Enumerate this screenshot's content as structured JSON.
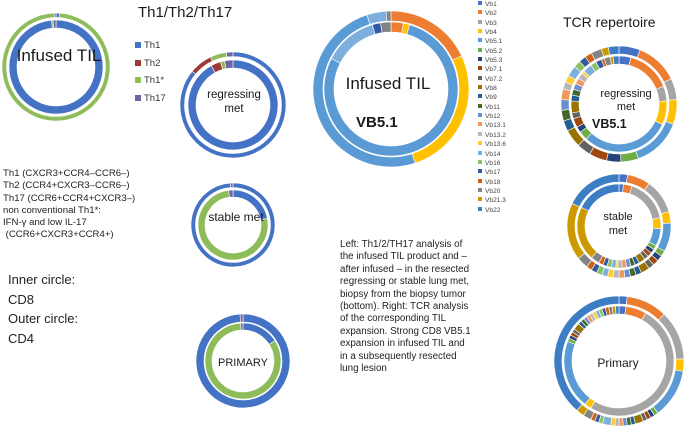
{
  "headings": {
    "th_title": "Th1/Th2/Th17",
    "tcr_title": "TCR repertoire"
  },
  "chart_data": [
    {
      "type": "donut",
      "label": "Infused TIL",
      "categories": [
        "Th1",
        "Th2",
        "Th1*",
        "Th17"
      ],
      "inner": [
        0.985,
        0.0,
        0.005,
        0.01
      ],
      "outer": [
        0.01,
        0.0,
        0.985,
        0.005
      ]
    },
    {
      "type": "donut",
      "label": "regressing met",
      "categories": [
        "Th1",
        "Th2",
        "Th1*",
        "Th17"
      ],
      "inner": [
        0.92,
        0.035,
        0.015,
        0.03
      ],
      "outer": [
        0.86,
        0.07,
        0.05,
        0.02
      ]
    },
    {
      "type": "donut",
      "label": "stable met",
      "categories": [
        "Th1",
        "Th2",
        "Th1*",
        "Th17"
      ],
      "inner": [
        0.22,
        0.0,
        0.76,
        0.02
      ],
      "outer": [
        0.99,
        0.0,
        0.0,
        0.01
      ]
    },
    {
      "type": "donut",
      "label": "PRIMARY",
      "categories": [
        "Th1",
        "Th2",
        "Th1*",
        "Th17"
      ],
      "inner": [
        0.16,
        0.0,
        0.83,
        0.01
      ],
      "outer": [
        0.99,
        0.0,
        0.0,
        0.01
      ]
    },
    {
      "type": "donut",
      "label": "Infused TIL",
      "sublabel": "VB5.1",
      "categories": [
        "Vb1",
        "Vb2",
        "Vb3",
        "Vb4",
        "Vb5.1",
        "Vb5.2",
        "Vb5.3",
        "Vb7.1",
        "Vb7.2",
        "Vb8",
        "Vb9",
        "Vb11",
        "Vb12",
        "Vb13.1",
        "Vb13.2",
        "Vb13.6",
        "Vb14",
        "Vb16",
        "Vb17",
        "Vb18",
        "Vb20",
        "Vb21.3",
        "Vb22"
      ],
      "inner": [
        0,
        0.03,
        0,
        0.015,
        0.78,
        0,
        0,
        0,
        0,
        0,
        0,
        0,
        0,
        0,
        0,
        0,
        0.13,
        0,
        0.02,
        0,
        0.025,
        0,
        0
      ],
      "outer": [
        0,
        0.18,
        0,
        0.27,
        0.5,
        0,
        0,
        0,
        0,
        0,
        0,
        0,
        0,
        0,
        0,
        0,
        0.04,
        0,
        0,
        0,
        0.01,
        0,
        0
      ]
    },
    {
      "type": "donut",
      "label": "regressing met",
      "sublabel": "VB5.1",
      "categories": [
        "Vb1",
        "Vb2",
        "Vb3",
        "Vb4",
        "Vb5.1",
        "Vb5.2",
        "Vb5.3",
        "Vb7.1",
        "Vb7.2",
        "Vb8",
        "Vb9",
        "Vb11",
        "Vb12",
        "Vb13.1",
        "Vb13.2",
        "Vb13.6",
        "Vb14",
        "Vb16",
        "Vb17",
        "Vb18",
        "Vb20",
        "Vb21.3",
        "Vb22"
      ],
      "inner": [
        0.04,
        0.15,
        0.05,
        0.08,
        0.3,
        0.03,
        0.02,
        0.03,
        0.02,
        0.04,
        0.02,
        0.02,
        0.02,
        0.02,
        0.02,
        0.01,
        0.03,
        0.02,
        0.02,
        0.01,
        0.02,
        0.01,
        0.02
      ],
      "outer": [
        0.06,
        0.12,
        0.06,
        0.07,
        0.14,
        0.05,
        0.04,
        0.05,
        0.04,
        0.05,
        0.03,
        0.03,
        0.03,
        0.03,
        0.02,
        0.02,
        0.03,
        0.02,
        0.02,
        0.02,
        0.03,
        0.02,
        0.03
      ]
    },
    {
      "type": "donut",
      "label": "stable met",
      "categories": [
        "Vb1",
        "Vb2",
        "Vb3",
        "Vb4",
        "Vb5.1",
        "Vb5.2",
        "Vb5.3",
        "Vb7.1",
        "Vb7.2",
        "Vb8",
        "Vb9",
        "Vb11",
        "Vb12",
        "Vb13.1",
        "Vb13.2",
        "Vb13.6",
        "Vb14",
        "Vb16",
        "Vb17",
        "Vb18",
        "Vb20",
        "Vb21.3",
        "Vb22"
      ],
      "inner": [
        0.02,
        0.04,
        0.2,
        0.05,
        0.08,
        0.02,
        0.02,
        0.02,
        0.02,
        0.03,
        0.02,
        0.02,
        0.02,
        0.02,
        0.02,
        0.01,
        0.02,
        0.02,
        0.02,
        0.02,
        0.04,
        0.25,
        0.21
      ],
      "outer": [
        0.03,
        0.08,
        0.12,
        0.04,
        0.1,
        0.02,
        0.02,
        0.02,
        0.02,
        0.03,
        0.02,
        0.02,
        0.02,
        0.02,
        0.02,
        0.02,
        0.02,
        0.02,
        0.02,
        0.02,
        0.04,
        0.2,
        0.2
      ]
    },
    {
      "type": "donut",
      "label": "Primary",
      "categories": [
        "Vb1",
        "Vb2",
        "Vb3",
        "Vb4",
        "Vb5.1",
        "Vb5.2",
        "Vb5.3",
        "Vb7.1",
        "Vb7.2",
        "Vb8",
        "Vb9",
        "Vb11",
        "Vb12",
        "Vb13.1",
        "Vb13.2",
        "Vb13.6",
        "Vb14",
        "Vb16",
        "Vb17",
        "Vb18",
        "Vb20",
        "Vb21.3",
        "Vb22"
      ],
      "inner": [
        0.02,
        0.06,
        0.5,
        0.02,
        0.2,
        0.01,
        0.01,
        0.01,
        0.01,
        0.02,
        0.01,
        0.01,
        0.01,
        0.01,
        0.01,
        0.01,
        0.01,
        0.01,
        0.01,
        0.01,
        0.01,
        0.01,
        0.01
      ],
      "outer": [
        0.02,
        0.1,
        0.12,
        0.03,
        0.12,
        0.01,
        0.01,
        0.01,
        0.01,
        0.02,
        0.01,
        0.01,
        0.01,
        0.01,
        0.01,
        0.01,
        0.02,
        0.01,
        0.01,
        0.01,
        0.02,
        0.02,
        0.38
      ]
    }
  ],
  "th_legend": [
    {
      "name": "Th1",
      "color": "#4472c4"
    },
    {
      "name": "Th2",
      "color": "#9e3b36"
    },
    {
      "name": "Th1*",
      "color": "#8fbc5a"
    },
    {
      "name": "Th17",
      "color": "#7062a8"
    }
  ],
  "vb_legend": [
    {
      "name": "Vb1",
      "color": "#4472c4"
    },
    {
      "name": "Vb2",
      "color": "#ed7d31"
    },
    {
      "name": "Vb3",
      "color": "#a5a5a5"
    },
    {
      "name": "Vb4",
      "color": "#ffc000"
    },
    {
      "name": "Vb5.1",
      "color": "#5b9bd5"
    },
    {
      "name": "Vb5.2",
      "color": "#70ad47"
    },
    {
      "name": "Vb5.3",
      "color": "#264478"
    },
    {
      "name": "Vb7.1",
      "color": "#9e480e"
    },
    {
      "name": "Vb7.2",
      "color": "#636363"
    },
    {
      "name": "Vb8",
      "color": "#997300"
    },
    {
      "name": "Vb9",
      "color": "#255e91"
    },
    {
      "name": "Vb11",
      "color": "#43682b"
    },
    {
      "name": "Vb12",
      "color": "#698ed0"
    },
    {
      "name": "Vb13.1",
      "color": "#f1975a"
    },
    {
      "name": "Vb13.2",
      "color": "#b7b7b7"
    },
    {
      "name": "Vb13.6",
      "color": "#ffcd33"
    },
    {
      "name": "Vb14",
      "color": "#7cafdd"
    },
    {
      "name": "Vb16",
      "color": "#8cc168"
    },
    {
      "name": "Vb17",
      "color": "#335aa1"
    },
    {
      "name": "Vb18",
      "color": "#d26012"
    },
    {
      "name": "Vb20",
      "color": "#848484"
    },
    {
      "name": "Vb21.3",
      "color": "#cc9a00"
    },
    {
      "name": "Vb22",
      "color": "#3c7dc4"
    }
  ],
  "definitions": [
    "Th1 (CXCR3+CCR4–CCR6–)",
    "Th2 (CCR4+CXCR3–CCR6–)",
    "Th17 (CCR6+CCR4+CXCR3–)",
    "non conventional Th1*:",
    "IFN-γ and low IL-17",
    " (CCR6+CXCR3+CCR4+)"
  ],
  "circle_legend": [
    "Inner circle:",
    "CD8",
    "Outer circle:",
    "CD4"
  ],
  "caption": [
    "Left: Th1/2/TH17 analysis of",
    "the infused TIL product and –",
    "after infused – in the resected",
    "regressing or stable lung met,",
    "biopsy from the biopsy tumor",
    "(bottom). Right: TCR analysis",
    "of the corresponding TIL",
    "expansion. Strong CD8 VB5.1",
    "expansion in infused TIL and",
    "in a subsequently resected",
    "lung lesion"
  ]
}
